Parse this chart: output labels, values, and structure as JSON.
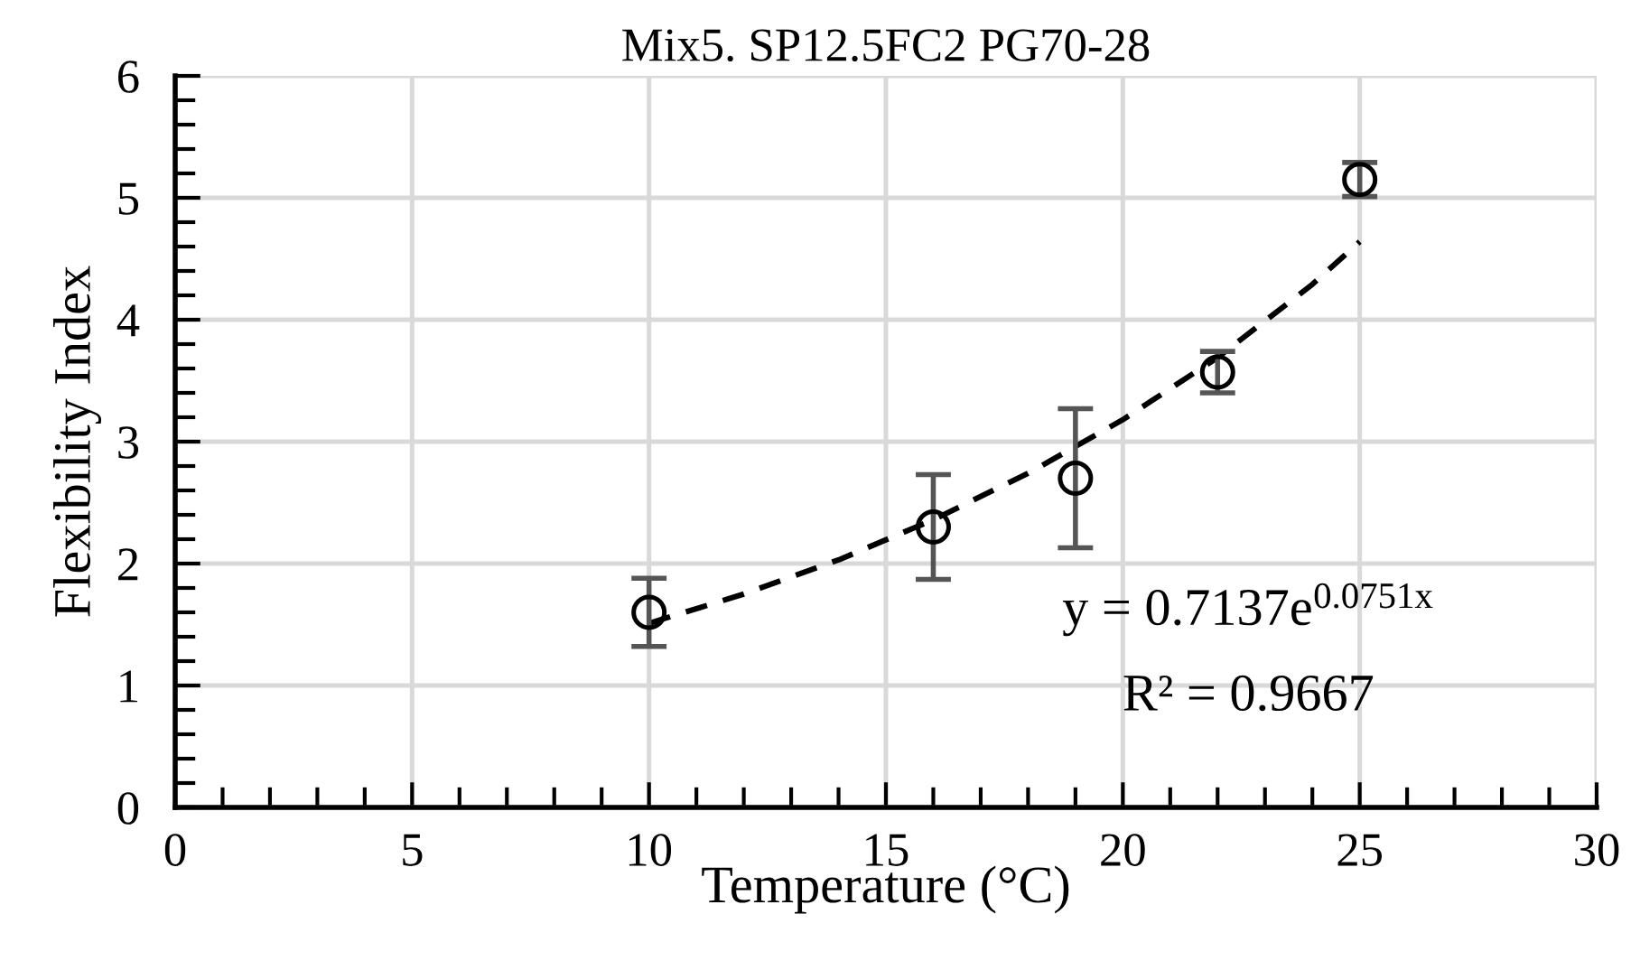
{
  "chart_data": {
    "type": "scatter",
    "title": "Mix5. SP12.5FC2 PG70-28",
    "xlabel": "Temperature (°C)",
    "ylabel": "Flexibility Index",
    "series": [
      {
        "x": [
          10,
          16,
          19,
          22,
          25
        ],
        "values": [
          1.6,
          2.3,
          2.7,
          3.57,
          5.15
        ],
        "errors": [
          0.28,
          0.43,
          0.57,
          0.17,
          0.14
        ],
        "color": "#000000",
        "marker": "circle"
      },
      {
        "type": "line",
        "x": [
          10,
          12,
          14,
          16,
          18,
          20,
          22,
          24,
          25
        ],
        "values": [
          1.51,
          1.75,
          2.03,
          2.36,
          2.74,
          3.18,
          3.69,
          4.29,
          4.64
        ],
        "color": "#000000",
        "line_style": "dashed",
        "marker": "none"
      }
    ],
    "annotations": [
      "y = 0.7137e$^{0.0751x}$",
      "R² = 0.9667"
    ],
    "xlim": [
      0,
      30
    ],
    "xticks": [
      0,
      5,
      10,
      15,
      20,
      25,
      30
    ],
    "ylim": [
      0,
      6
    ],
    "yticks": [
      0,
      1,
      2,
      3,
      4,
      5,
      6
    ],
    "grid": true,
    "legend": false
  }
}
